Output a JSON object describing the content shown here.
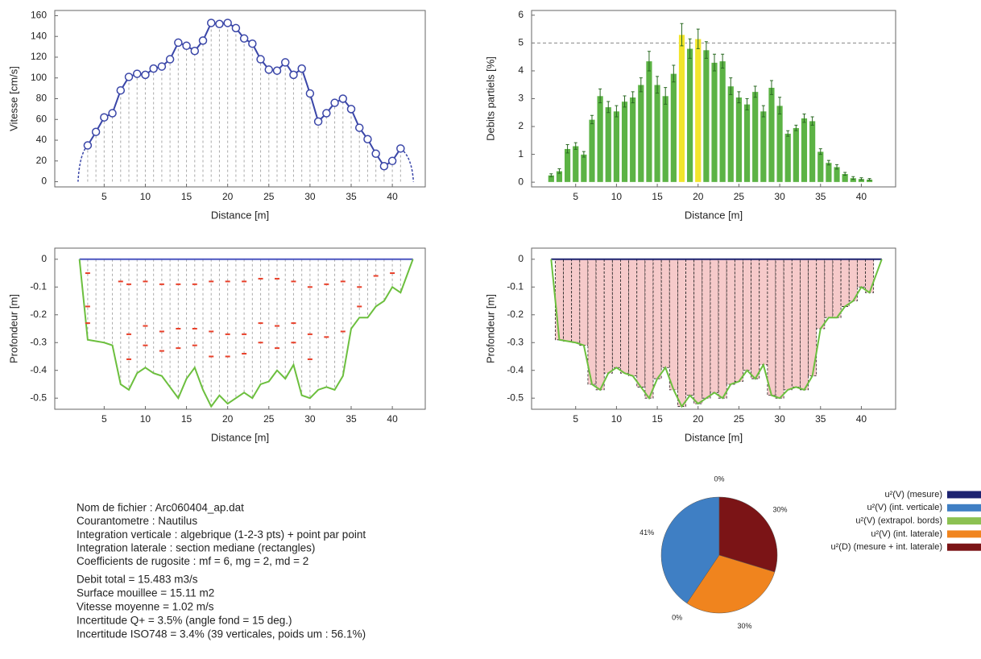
{
  "chart_data": [
    {
      "type": "line",
      "y_label": "Vitesse [cm/s]",
      "x_label": "Distance [m]",
      "color": "#3a46a8",
      "x": [
        3,
        4,
        5,
        6,
        7,
        8,
        9,
        10,
        11,
        12,
        13,
        14,
        15,
        16,
        17,
        18,
        19,
        20,
        21,
        22,
        23,
        24,
        25,
        26,
        27,
        28,
        29,
        30,
        31,
        32,
        33,
        34,
        35,
        36,
        37,
        38,
        39,
        40,
        41
      ],
      "values": [
        35,
        48,
        62,
        66,
        88,
        101,
        104,
        103,
        109,
        111,
        118,
        134,
        131,
        126,
        136,
        153,
        152,
        153,
        148,
        138,
        133,
        118,
        108,
        107,
        115,
        103,
        109,
        85,
        58,
        66,
        76,
        80,
        70,
        52,
        41,
        27,
        15,
        20,
        32
      ],
      "xlim": [
        -1,
        44
      ],
      "xticks": [
        5,
        10,
        15,
        20,
        25,
        30,
        35,
        40
      ],
      "ylim": [
        -5,
        165
      ],
      "yticks": [
        0,
        20,
        40,
        60,
        80,
        100,
        120,
        140,
        160
      ]
    },
    {
      "type": "bar",
      "y_label": "Debits partiels [%]",
      "x_label": "Distance [m]",
      "x": [
        2,
        3,
        4,
        5,
        6,
        7,
        8,
        9,
        10,
        11,
        12,
        13,
        14,
        15,
        16,
        17,
        18,
        19,
        20,
        21,
        22,
        23,
        24,
        25,
        26,
        27,
        28,
        29,
        30,
        31,
        32,
        33,
        34,
        35,
        36,
        37,
        38,
        39,
        40,
        41
      ],
      "values": [
        0.25,
        0.4,
        1.2,
        1.3,
        1.0,
        2.25,
        3.1,
        2.7,
        2.55,
        2.9,
        3.05,
        3.5,
        4.35,
        3.5,
        3.1,
        3.9,
        5.3,
        4.8,
        5.15,
        4.75,
        4.3,
        4.35,
        3.45,
        3.05,
        2.8,
        3.25,
        2.55,
        3.4,
        2.75,
        1.75,
        1.95,
        2.3,
        2.2,
        1.1,
        0.7,
        0.55,
        0.3,
        0.15,
        0.12,
        0.1
      ],
      "errors": [
        0.05,
        0.08,
        0.15,
        0.12,
        0.1,
        0.15,
        0.25,
        0.2,
        0.2,
        0.2,
        0.2,
        0.25,
        0.35,
        0.3,
        0.3,
        0.3,
        0.4,
        0.35,
        0.35,
        0.3,
        0.3,
        0.25,
        0.3,
        0.2,
        0.2,
        0.2,
        0.2,
        0.25,
        0.3,
        0.1,
        0.1,
        0.15,
        0.15,
        0.1,
        0.08,
        0.08,
        0.05,
        0.05,
        0.04,
        0.03
      ],
      "colors": [
        "#5cb345",
        "#5cb345",
        "#5cb345",
        "#5cb345",
        "#5cb345",
        "#5cb345",
        "#5cb345",
        "#5cb345",
        "#5cb345",
        "#5cb345",
        "#5cb345",
        "#5cb345",
        "#5cb345",
        "#5cb345",
        "#5cb345",
        "#5cb345",
        "#f2e52c",
        "#5cb345",
        "#f2e52c",
        "#5cb345",
        "#5cb345",
        "#5cb345",
        "#5cb345",
        "#5cb345",
        "#5cb345",
        "#5cb345",
        "#5cb345",
        "#5cb345",
        "#5cb345",
        "#5cb345",
        "#5cb345",
        "#5cb345",
        "#5cb345",
        "#5cb345",
        "#5cb345",
        "#5cb345",
        "#5cb345",
        "#5cb345",
        "#5cb345",
        "#5cb345"
      ],
      "reference_line": 5,
      "xlim": [
        -0.4,
        44.2
      ],
      "xticks": [
        5,
        10,
        15,
        20,
        25,
        30,
        35,
        40
      ],
      "ylim": [
        -0.17,
        6.17
      ],
      "yticks": [
        0,
        1,
        2,
        3,
        4,
        5,
        6
      ]
    },
    {
      "type": "profile",
      "y_label": "Profondeur [m]",
      "x_label": "Distance [m]",
      "surface_level": 0,
      "surface_color": "#4a55c0",
      "bed": {
        "color": "#6cbf3e",
        "x": [
          2,
          3,
          4,
          5,
          6,
          7,
          8,
          9,
          10,
          11,
          12,
          13,
          14,
          15,
          16,
          17,
          18,
          19,
          20,
          21,
          22,
          23,
          24,
          25,
          26,
          27,
          28,
          29,
          30,
          31,
          32,
          33,
          34,
          35,
          36,
          37,
          38,
          39,
          40,
          41,
          42.5
        ],
        "values": [
          0,
          -0.29,
          -0.295,
          -0.3,
          -0.31,
          -0.45,
          -0.47,
          -0.41,
          -0.39,
          -0.41,
          -0.42,
          -0.46,
          -0.5,
          -0.43,
          -0.39,
          -0.47,
          -0.53,
          -0.49,
          -0.52,
          -0.5,
          -0.48,
          -0.5,
          -0.45,
          -0.44,
          -0.4,
          -0.43,
          -0.38,
          -0.49,
          -0.5,
          -0.47,
          -0.46,
          -0.47,
          -0.42,
          -0.25,
          -0.21,
          -0.21,
          -0.17,
          -0.15,
          -0.1,
          -0.12,
          0
        ]
      },
      "points": {
        "color": "#e8402a",
        "x": [
          3,
          3,
          3,
          7,
          8,
          8,
          8,
          10,
          10,
          10,
          12,
          12,
          12,
          14,
          14,
          14,
          16,
          16,
          16,
          18,
          18,
          18,
          20,
          20,
          20,
          22,
          22,
          22,
          24,
          24,
          24,
          26,
          26,
          26,
          28,
          28,
          28,
          30,
          30,
          30,
          32,
          32,
          34,
          34,
          36,
          36,
          38,
          40
        ],
        "values": [
          -0.05,
          -0.17,
          -0.23,
          -0.08,
          -0.09,
          -0.27,
          -0.36,
          -0.08,
          -0.24,
          -0.31,
          -0.09,
          -0.26,
          -0.33,
          -0.09,
          -0.25,
          -0.32,
          -0.09,
          -0.25,
          -0.31,
          -0.08,
          -0.26,
          -0.35,
          -0.08,
          -0.27,
          -0.35,
          -0.08,
          -0.27,
          -0.34,
          -0.07,
          -0.23,
          -0.3,
          -0.07,
          -0.24,
          -0.32,
          -0.08,
          -0.23,
          -0.3,
          -0.1,
          -0.27,
          -0.36,
          -0.09,
          -0.28,
          -0.08,
          -0.26,
          -0.1,
          -0.17,
          -0.06,
          -0.05
        ]
      },
      "xlim": [
        -1,
        44
      ],
      "xticks": [
        5,
        10,
        15,
        20,
        25,
        30,
        35,
        40
      ],
      "ylim": [
        -0.54,
        0.04
      ],
      "yticks": [
        0,
        -0.1,
        -0.2,
        -0.3,
        -0.4,
        -0.5
      ]
    },
    {
      "type": "area",
      "y_label": "Profondeur [m]",
      "x_label": "Distance [m]",
      "color": "#6cbf3e",
      "fill": "#f6caca",
      "x": [
        2,
        3,
        4,
        5,
        6,
        7,
        8,
        9,
        10,
        11,
        12,
        13,
        14,
        15,
        16,
        17,
        18,
        19,
        20,
        21,
        22,
        23,
        24,
        25,
        26,
        27,
        28,
        29,
        30,
        31,
        32,
        33,
        34,
        35,
        36,
        37,
        38,
        39,
        40,
        41,
        42.5
      ],
      "values": [
        0,
        -0.29,
        -0.295,
        -0.3,
        -0.31,
        -0.45,
        -0.47,
        -0.41,
        -0.39,
        -0.41,
        -0.42,
        -0.46,
        -0.5,
        -0.43,
        -0.39,
        -0.47,
        -0.53,
        -0.49,
        -0.52,
        -0.5,
        -0.48,
        -0.5,
        -0.45,
        -0.44,
        -0.4,
        -0.43,
        -0.38,
        -0.49,
        -0.5,
        -0.47,
        -0.46,
        -0.47,
        -0.42,
        -0.25,
        -0.21,
        -0.21,
        -0.17,
        -0.15,
        -0.1,
        -0.12,
        0
      ],
      "xlim": [
        -0.4,
        44.2
      ],
      "xticks": [
        5,
        10,
        15,
        20,
        25,
        30,
        35,
        40
      ],
      "ylim": [
        -0.54,
        0.04
      ],
      "yticks": [
        0,
        -0.1,
        -0.2,
        -0.3,
        -0.4,
        -0.5
      ]
    },
    {
      "type": "pie",
      "categories": [
        "u²(V) (mesure)",
        "u²(V) (int. verticale)",
        "u²(V) (extrapol. bords)",
        "u²(V) (int. laterale)",
        "u²(D) (mesure + int. laterale)"
      ],
      "values": [
        0,
        41,
        0,
        30,
        30
      ],
      "value_labels": [
        "0%",
        "41%",
        "0%",
        "30%",
        "30%"
      ],
      "colors": [
        "#1c2270",
        "#3f7fc4",
        "#8cc152",
        "#f0841e",
        "#7b1416"
      ]
    }
  ],
  "info": {
    "settings": [
      "Nom de fichier : Arc060404_ap.dat",
      "Courantometre : Nautilus",
      "Integration verticale : algebrique (1-2-3 pts) + point par point",
      "Integration laterale : section mediane (rectangles)",
      "Coefficients de rugosite : mf = 6, mg = 2, md = 2"
    ],
    "results": [
      "Debit total = 15.483 m3/s",
      "Surface mouillee = 15.11 m2",
      "Vitesse moyenne = 1.02 m/s",
      "Incertitude Q+ = 3.5% (angle fond = 15 deg.)",
      "Incertitude ISO748 = 3.4% (39 verticales, poids um :  56.1%)"
    ]
  }
}
